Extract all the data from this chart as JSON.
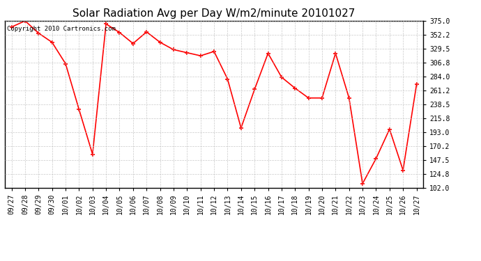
{
  "title": "Solar Radiation Avg per Day W/m2/minute 20101027",
  "copyright_text": "Copyright 2010 Cartronics.com",
  "labels": [
    "09/27",
    "09/28",
    "09/29",
    "09/30",
    "10/01",
    "10/02",
    "10/03",
    "10/04",
    "10/05",
    "10/06",
    "10/07",
    "10/08",
    "10/09",
    "10/10",
    "10/11",
    "10/12",
    "10/13",
    "10/14",
    "10/15",
    "10/16",
    "10/17",
    "10/18",
    "10/19",
    "10/20",
    "10/21",
    "10/22",
    "10/23",
    "10/24",
    "10/25",
    "10/26",
    "10/27"
  ],
  "values": [
    365.0,
    375.0,
    355.0,
    340.0,
    305.0,
    230.0,
    157.0,
    370.0,
    356.0,
    338.0,
    357.0,
    340.0,
    328.0,
    323.0,
    318.0,
    325.0,
    280.0,
    200.0,
    263.0,
    322.0,
    283.0,
    265.0,
    249.0,
    249.0,
    322.0,
    249.0,
    109.0,
    150.0,
    198.0,
    131.0,
    271.0
  ],
  "line_color": "#ff0000",
  "marker": "+",
  "marker_size": 5,
  "line_width": 1.2,
  "background_color": "#ffffff",
  "grid_color": "#bbbbbb",
  "yticks": [
    102.0,
    124.8,
    147.5,
    170.2,
    193.0,
    215.8,
    238.5,
    261.2,
    284.0,
    306.8,
    329.5,
    352.2,
    375.0
  ],
  "ylim": [
    102.0,
    375.0
  ],
  "title_fontsize": 11,
  "tick_fontsize": 7,
  "copyright_fontsize": 6.5,
  "fig_width": 6.9,
  "fig_height": 3.75,
  "dpi": 100
}
